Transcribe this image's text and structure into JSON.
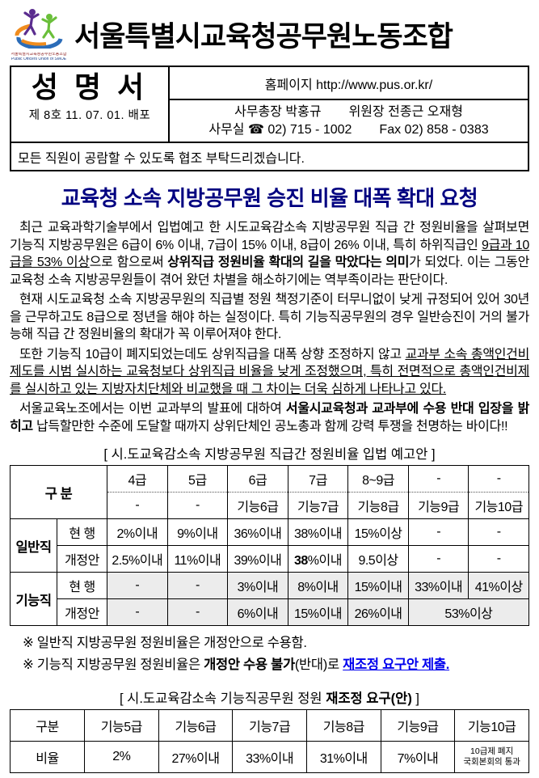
{
  "colors": {
    "headline": "#000080",
    "link_blue": "#0000ee",
    "row_gray": "#ececec"
  },
  "header": {
    "org_title": "서울특별시교육청공무원노동조합",
    "logo_caption1": "서울특별시교육청공무원노동조합",
    "logo_caption2": "Public Officers Union of SMOE",
    "doc_type": "성 명 서",
    "doc_no": "제 8호  11. 07. 01. 배포",
    "homepage": "홈페이지 http://www.pus.or.kr/",
    "contact_role1": "사무총장 박홍규",
    "contact_role2": "위원장 전종근 오재형",
    "contact_tel": "사무실 ☎ 02) 715 - 1002",
    "contact_fax": "Fax 02) 858 - 0383",
    "notice": "모든 직원이 공람할 수 있도록 협조 부탁드리겠습니다."
  },
  "headline": "교육청 소속 지방공무원 승진 비율 대폭 확대 요청",
  "paragraphs": [
    {
      "runs": [
        {
          "t": "최근 교육과학기술부에서 입법예고 한 시도교육감소속 지방공무원 직급 간 정원비율을 살펴보면 기능직 지방공무원은 6급이 6% 이내, 7급이 15% 이내, 8급이 26% 이내, 특히 하위직급인 "
        },
        {
          "t": "9급과 10급을 53% 이상",
          "u": true
        },
        {
          "t": "으로 함으로써 "
        },
        {
          "t": "상위직급 정원비율 확대의 길을 막았다는 의미",
          "b": true
        },
        {
          "t": "가 되었다. 이는 그동안 교육청 소속 지방공무원들이 겪어 왔던 차별을 해소하기에는 역부족이라는 판단이다."
        }
      ]
    },
    {
      "runs": [
        {
          "t": "현재 시도교육청 소속 지방공무원의 직급별 정원 책정기준이 터무니없이 낮게 규정되어 있어 30년을 근무하고도 8급으로 정년을 해야 하는 실정이다. 특히 기능직공무원의 경우 일반승진이 거의 불가능해 직급 간 정원비율의 확대가 꼭 이루어져야 한다."
        }
      ]
    },
    {
      "runs": [
        {
          "t": "또한 기능직 10급이 폐지되었는데도 상위직급을 대폭 상향 조정하지 않고 "
        },
        {
          "t": "교과부 소속 총액인건비제도를 시범 실시하는 교육청보다 상위직급 비율을 낮게 조정했으며, 특히 전면적으로 총액인건비제를 실시하고 있는 지방자치단체와 비교했을 때 그 차이는 더욱 심하게 나타나고 있다.",
          "u": true
        }
      ]
    },
    {
      "runs": [
        {
          "t": "서울교육노조에서는 이번 교과부의 발표에 대하여 "
        },
        {
          "t": "서울시교육청과 교과부에 수용 반대 입장을 밝히고",
          "b": true
        },
        {
          "t": " 납득할만한 수준에 도달할 때까지 상위단체인 공노총과 함께 강력 투쟁을 천명하는 바이다!!"
        }
      ]
    }
  ],
  "table1": {
    "title": "[ 시.도교육감소속 지방공무원 직급간 정원비율 입법 예고안 ]",
    "group_label": "구  분",
    "grade_row": [
      "4급",
      "5급",
      "6급",
      "7급",
      "8~9급",
      "-",
      "-"
    ],
    "func_grade_row": [
      "-",
      "-",
      "기능6급",
      "기능7급",
      "기능8급",
      "기능9급",
      "기능10급"
    ],
    "general_label": "일반직",
    "func_label": "기능직",
    "current_label": "현  행",
    "revised_label": "개정안",
    "general_current": [
      "2%이내",
      "9%이내",
      "36%이내",
      "38%이내",
      "15%이상",
      "-",
      "-"
    ],
    "general_revised": [
      "2.5%이내",
      "11%이내",
      "39%이내",
      "",
      "9.5이상",
      "-",
      "-"
    ],
    "general_revised_bold": "38",
    "general_revised_bold_rest": "%이내",
    "func_current": [
      "-",
      "-",
      "3%이내",
      "8%이내",
      "15%이내",
      "33%이내",
      "41%이상"
    ],
    "func_revised": [
      "-",
      "-",
      "6%이내",
      "15%이내",
      "26%이내",
      "53%이상"
    ]
  },
  "notes": [
    {
      "runs": [
        {
          "t": "※ 일반직 지방공무원 정원비율은 개정안으로 수용함."
        }
      ]
    },
    {
      "runs": [
        {
          "t": "※ 기능직 지방공무원 정원비율은 "
        },
        {
          "t": "개정안 수용 불가",
          "b": true
        },
        {
          "t": "(반대)로 "
        },
        {
          "t": "재조정 요구안 제출.",
          "b": true,
          "u": true,
          "c": "#0000ee"
        }
      ]
    }
  ],
  "table2": {
    "title_runs": [
      {
        "t": "[ 시.도교육감소속 기능직공무원 정원 "
      },
      {
        "t": "재조정 요구(안)",
        "b": true
      },
      {
        "t": " ]"
      }
    ],
    "headers": [
      "구분",
      "기능5급",
      "기능6급",
      "기능7급",
      "기능8급",
      "기능9급",
      "기능10급"
    ],
    "row_label": "비율",
    "values": [
      "2%",
      "27%이내",
      "33%이내",
      "31%이내",
      "7%이내"
    ],
    "last_cell_line1": "10급제 폐지",
    "last_cell_line2": "국회본회의 통과"
  }
}
